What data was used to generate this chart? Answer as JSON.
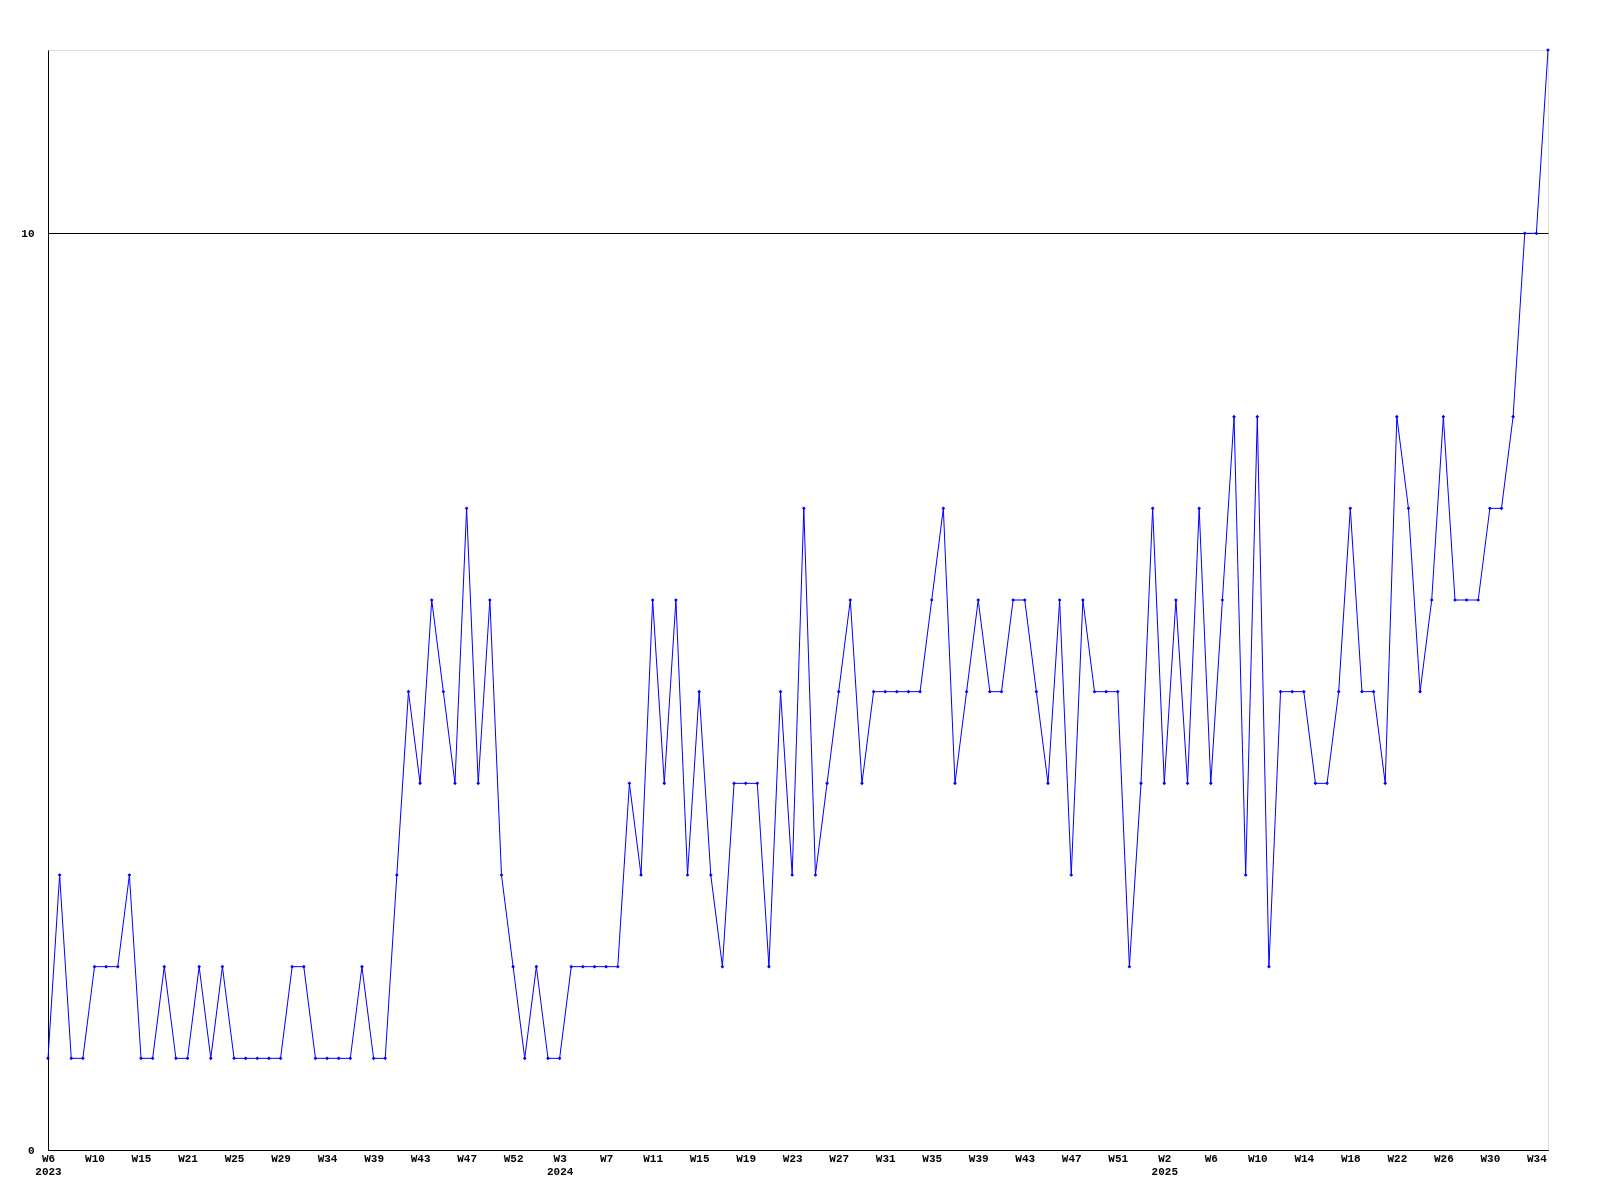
{
  "chart_data": {
    "type": "line",
    "categories": [
      "W6\n2023",
      null,
      null,
      null,
      "W10",
      null,
      null,
      null,
      "W15",
      null,
      null,
      null,
      "W21",
      null,
      null,
      null,
      "W25",
      null,
      null,
      null,
      "W29",
      null,
      null,
      null,
      "W34",
      null,
      null,
      null,
      "W39",
      null,
      null,
      null,
      "W43",
      null,
      null,
      null,
      "W47",
      null,
      null,
      null,
      "W52",
      null,
      null,
      null,
      "W3\n2024",
      null,
      null,
      null,
      "W7",
      null,
      null,
      null,
      "W11",
      null,
      null,
      null,
      "W15",
      null,
      null,
      null,
      "W19",
      null,
      null,
      null,
      "W23",
      null,
      null,
      null,
      "W27",
      null,
      null,
      null,
      "W31",
      null,
      null,
      null,
      "W35",
      null,
      null,
      null,
      "W39",
      null,
      null,
      null,
      "W43",
      null,
      null,
      null,
      "W47",
      null,
      null,
      null,
      "W51",
      null,
      null,
      null,
      "W2\n2025",
      null,
      null,
      null,
      "W6",
      null,
      null,
      null,
      "W10",
      null,
      null,
      null,
      "W14",
      null,
      null,
      null,
      "W18",
      null,
      null,
      null,
      "W22",
      null,
      null,
      null,
      "W26",
      null,
      null,
      null,
      "W30",
      null,
      null,
      null,
      "W34",
      null
    ],
    "series": [
      {
        "color": "#0000ff",
        "values": [
          1,
          3,
          1,
          1,
          2,
          2,
          2,
          3,
          1,
          1,
          2,
          1,
          1,
          2,
          1,
          2,
          1,
          1,
          1,
          1,
          1,
          2,
          2,
          1,
          1,
          1,
          1,
          2,
          1,
          1,
          3,
          5,
          4,
          6,
          5,
          4,
          7,
          4,
          6,
          3,
          2,
          1,
          2,
          1,
          1,
          2,
          2,
          2,
          2,
          2,
          4,
          3,
          6,
          4,
          6,
          3,
          5,
          3,
          2,
          4,
          4,
          4,
          2,
          5,
          3,
          7,
          3,
          4,
          5,
          6,
          4,
          5,
          5,
          5,
          5,
          5,
          6,
          7,
          4,
          5,
          6,
          5,
          5,
          6,
          6,
          5,
          4,
          6,
          3,
          6,
          5,
          5,
          5,
          2,
          4,
          7,
          4,
          6,
          4,
          7,
          4,
          6,
          8,
          3,
          8,
          2,
          5,
          5,
          5,
          4,
          4,
          5,
          7,
          5,
          5,
          4,
          8,
          7,
          5,
          6,
          8,
          6,
          6,
          6,
          7,
          7,
          8,
          10,
          10,
          12
        ]
      }
    ],
    "ylim": [
      0,
      12
    ],
    "yticks": [
      0,
      10
    ],
    "grid": "y",
    "marker": "diamond",
    "line_style": "solid"
  }
}
